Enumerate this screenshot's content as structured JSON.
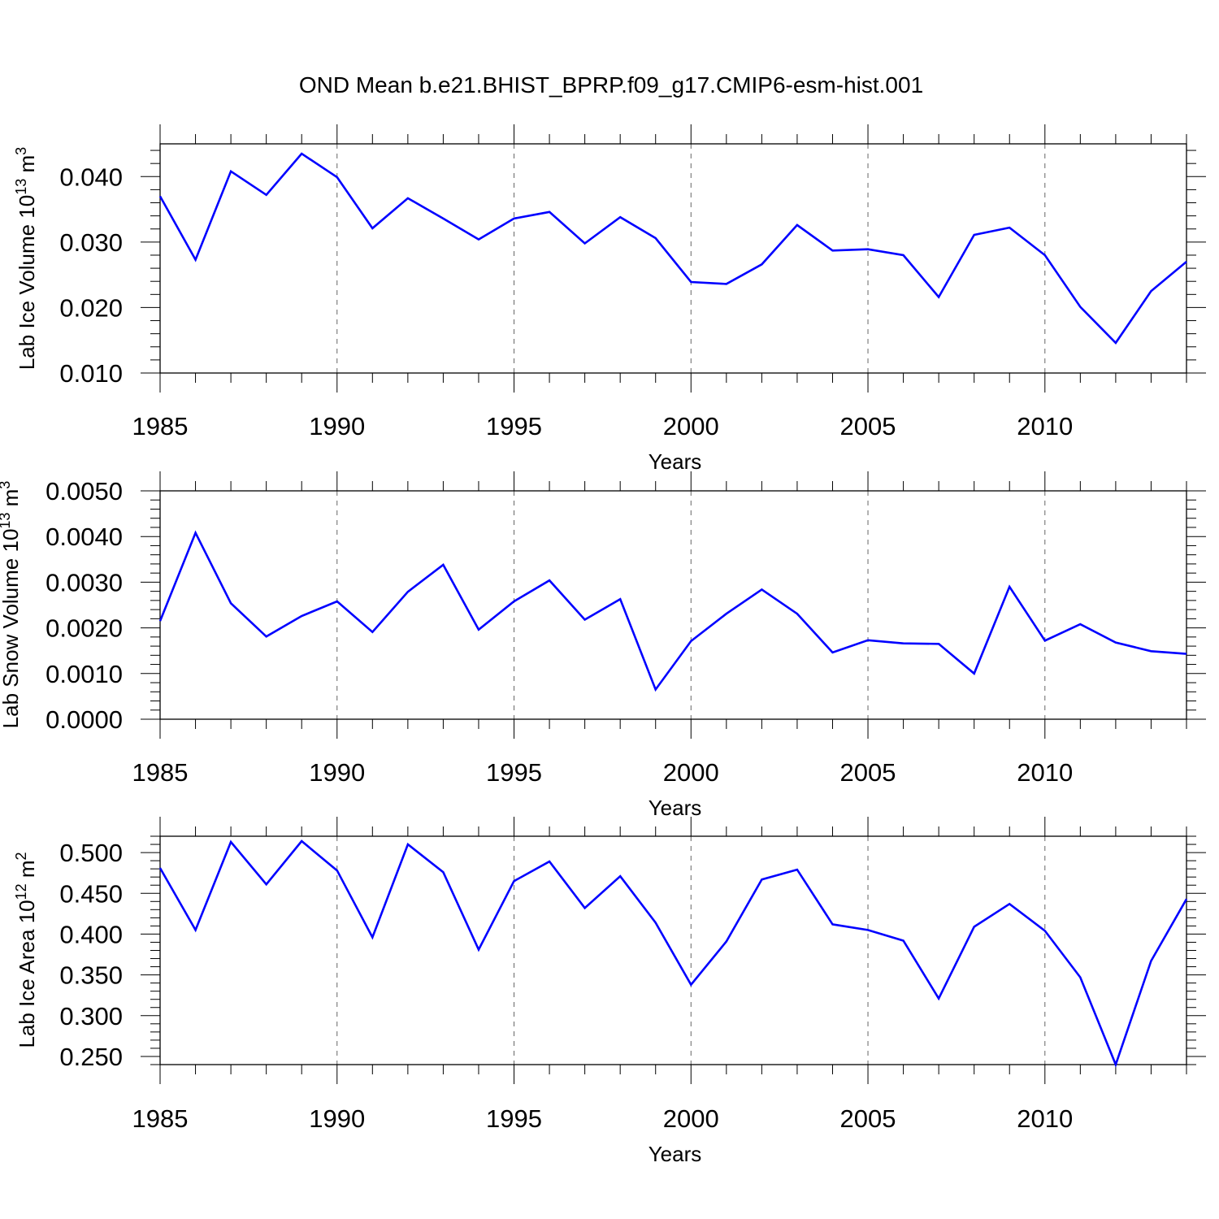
{
  "figure": {
    "title": "OND Mean b.e21.BHIST_BPRP.f09_g17.CMIP6-esm-hist.001",
    "line_color": "#0000ff"
  },
  "chart_data": [
    {
      "type": "line",
      "ylabel_main": "Lab Ice Volume 10",
      "ylabel_exp": "13",
      "ylabel_unit": " m",
      "ylabel_unit_exp": "3",
      "xlabel": "Years",
      "xlim": [
        1985,
        2014
      ],
      "ylim": [
        0.01,
        0.045
      ],
      "yticks": [
        0.01,
        0.02,
        0.03,
        0.04
      ],
      "ytick_labels": [
        "0.010",
        "0.020",
        "0.030",
        "0.040"
      ],
      "yminor": 0.002,
      "xticks": [
        1985,
        1990,
        1995,
        2000,
        2005,
        2010
      ],
      "xtick_labels": [
        "1985",
        "1990",
        "1995",
        "2000",
        "2005",
        "2010"
      ],
      "grid_x": [
        1990,
        1995,
        2000,
        2005,
        2010
      ],
      "x": [
        1985,
        1986,
        1987,
        1988,
        1989,
        1990,
        1991,
        1992,
        1993,
        1994,
        1995,
        1996,
        1997,
        1998,
        1999,
        2000,
        2001,
        2002,
        2003,
        2004,
        2005,
        2006,
        2007,
        2008,
        2009,
        2010,
        2011,
        2012,
        2013,
        2014
      ],
      "values": [
        0.037,
        0.0273,
        0.0408,
        0.0372,
        0.0435,
        0.0399,
        0.0321,
        0.0367,
        0.0336,
        0.0304,
        0.0336,
        0.0346,
        0.0298,
        0.0338,
        0.0306,
        0.0239,
        0.0236,
        0.0266,
        0.0326,
        0.0287,
        0.0289,
        0.028,
        0.0216,
        0.0311,
        0.0322,
        0.028,
        0.0201,
        0.0146,
        0.0225,
        0.027
      ]
    },
    {
      "type": "line",
      "ylabel_main": "Lab Snow Volume 10",
      "ylabel_exp": "13",
      "ylabel_unit": " m",
      "ylabel_unit_exp": "3",
      "xlabel": "Years",
      "xlim": [
        1985,
        2014
      ],
      "ylim": [
        0.0,
        0.005
      ],
      "yticks": [
        0.0,
        0.001,
        0.002,
        0.003,
        0.004,
        0.005
      ],
      "ytick_labels": [
        "0.0000",
        "0.0010",
        "0.0020",
        "0.0030",
        "0.0040",
        "0.0050"
      ],
      "yminor": 0.0002,
      "xticks": [
        1985,
        1990,
        1995,
        2000,
        2005,
        2010
      ],
      "xtick_labels": [
        "1985",
        "1990",
        "1995",
        "2000",
        "2005",
        "2010"
      ],
      "grid_x": [
        1990,
        1995,
        2000,
        2005,
        2010
      ],
      "x": [
        1985,
        1986,
        1987,
        1988,
        1989,
        1990,
        1991,
        1992,
        1993,
        1994,
        1995,
        1996,
        1997,
        1998,
        1999,
        2000,
        2001,
        2002,
        2003,
        2004,
        2005,
        2006,
        2007,
        2008,
        2009,
        2010,
        2011,
        2012,
        2013,
        2014
      ],
      "values": [
        0.00215,
        0.00408,
        0.00254,
        0.00181,
        0.00226,
        0.00258,
        0.00191,
        0.00279,
        0.00338,
        0.00196,
        0.00258,
        0.00304,
        0.00218,
        0.00263,
        0.00065,
        0.00171,
        0.00231,
        0.00284,
        0.00231,
        0.00146,
        0.00173,
        0.00166,
        0.00165,
        0.001,
        0.0029,
        0.00172,
        0.00208,
        0.00168,
        0.00149,
        0.00143
      ]
    },
    {
      "type": "line",
      "ylabel_main": "Lab Ice Area 10",
      "ylabel_exp": "12",
      "ylabel_unit": " m",
      "ylabel_unit_exp": "2",
      "xlabel": "Years",
      "xlim": [
        1985,
        2014
      ],
      "ylim": [
        0.24,
        0.52
      ],
      "yticks": [
        0.25,
        0.3,
        0.35,
        0.4,
        0.45,
        0.5
      ],
      "ytick_labels": [
        "0.250",
        "0.300",
        "0.350",
        "0.400",
        "0.450",
        "0.500"
      ],
      "yminor": 0.01,
      "xticks": [
        1985,
        1990,
        1995,
        2000,
        2005,
        2010
      ],
      "xtick_labels": [
        "1985",
        "1990",
        "1995",
        "2000",
        "2005",
        "2010"
      ],
      "grid_x": [
        1990,
        1995,
        2000,
        2005,
        2010
      ],
      "x": [
        1985,
        1986,
        1987,
        1988,
        1989,
        1990,
        1991,
        1992,
        1993,
        1994,
        1995,
        1996,
        1997,
        1998,
        1999,
        2000,
        2001,
        2002,
        2003,
        2004,
        2005,
        2006,
        2007,
        2008,
        2009,
        2010,
        2011,
        2012,
        2013,
        2014
      ],
      "values": [
        0.481,
        0.405,
        0.513,
        0.461,
        0.514,
        0.478,
        0.396,
        0.51,
        0.476,
        0.381,
        0.465,
        0.489,
        0.432,
        0.471,
        0.414,
        0.338,
        0.391,
        0.467,
        0.479,
        0.412,
        0.405,
        0.392,
        0.321,
        0.409,
        0.437,
        0.404,
        0.347,
        0.24,
        0.367,
        0.443
      ]
    }
  ]
}
